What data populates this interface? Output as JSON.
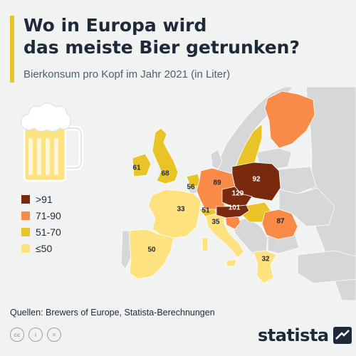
{
  "header": {
    "title_line1": "Wo in Europa wird",
    "title_line2": "das meiste Bier getrunken?",
    "subtitle": "Bierkonsum pro Kopf im Jahr 2021 (in Liter)"
  },
  "colors": {
    "accent": "#e9c427",
    "over91": "#7a2a0c",
    "71to90": "#f98a47",
    "51to70": "#e9c427",
    "le50": "#fde27f",
    "nodata": "#d5d7d8",
    "sea": "#f1f2f2"
  },
  "legend": [
    {
      "label": ">91",
      "color": "#7a2a0c"
    },
    {
      "label": "71-90",
      "color": "#f98a47"
    },
    {
      "label": "51-70",
      "color": "#e9c427"
    },
    {
      "label": "≤50",
      "color": "#fde27f"
    }
  ],
  "map_data": {
    "countries": [
      {
        "name": "Irland",
        "value": 61,
        "label": "61"
      },
      {
        "name": "Vereinigtes Königreich",
        "value": 68,
        "label": "68"
      },
      {
        "name": "Niederlande",
        "value": 56,
        "label": "56"
      },
      {
        "name": "Deutschland",
        "value": 89,
        "label": "89"
      },
      {
        "name": "Polen",
        "value": 92,
        "label": "92"
      },
      {
        "name": "Tschechien",
        "value": 129,
        "label": "129"
      },
      {
        "name": "Österreich",
        "value": 101,
        "label": "101"
      },
      {
        "name": "Frankreich",
        "value": 33,
        "label": "33"
      },
      {
        "name": "Schweiz",
        "value": 51,
        "label": "51"
      },
      {
        "name": "Italien",
        "value": 35,
        "label": "35"
      },
      {
        "name": "Spanien",
        "value": 50,
        "label": "50"
      },
      {
        "name": "Rumänien",
        "value": 87,
        "label": "87"
      },
      {
        "name": "Griechenland",
        "value": 32,
        "label": "32"
      }
    ]
  },
  "footer": {
    "source": "Quellen: Brewers of Europe, Statista-Berechnungen",
    "cc_icons": [
      "cc-icon",
      "by-icon",
      "nd-icon"
    ],
    "cc_labels": [
      "cc",
      "i",
      "="
    ],
    "brand": "statista"
  }
}
